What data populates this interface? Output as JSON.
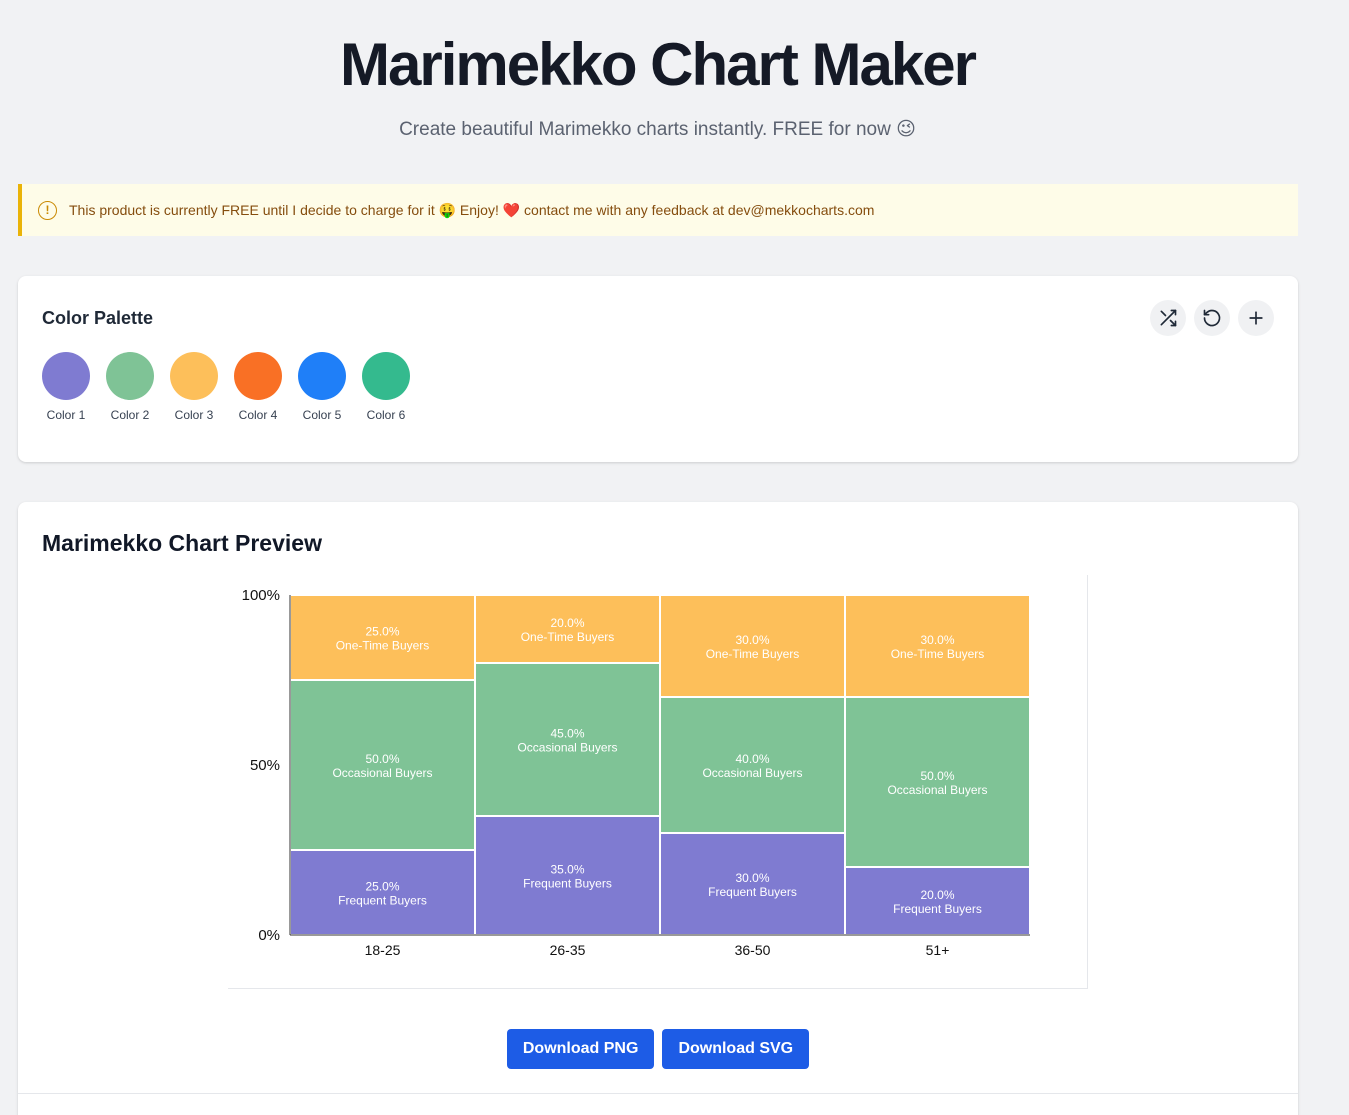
{
  "header": {
    "title": "Marimekko Chart Maker",
    "subtitle": "Create beautiful Marimekko charts instantly. FREE for now 😉"
  },
  "notice": {
    "icon": "exclamation-circle-icon",
    "text": "This product is currently FREE until I decide to charge for it 🤑 Enjoy! ❤️ contact me with any feedback at dev@mekkocharts.com"
  },
  "palette": {
    "title": "Color Palette",
    "actions": [
      "shuffle-icon",
      "reset-icon",
      "plus-icon"
    ],
    "colors": [
      {
        "label": "Color 1",
        "hex": "#7f7bd1"
      },
      {
        "label": "Color 2",
        "hex": "#7fc396"
      },
      {
        "label": "Color 3",
        "hex": "#fdbf5a"
      },
      {
        "label": "Color 4",
        "hex": "#f97025"
      },
      {
        "label": "Color 5",
        "hex": "#1f7ff8"
      },
      {
        "label": "Color 6",
        "hex": "#34ba8e"
      }
    ]
  },
  "preview": {
    "title": "Marimekko Chart Preview"
  },
  "chart_data": {
    "type": "bar",
    "subtype": "marimekko",
    "categories": [
      "18-25",
      "26-35",
      "36-50",
      "51+"
    ],
    "column_widths": [
      25,
      25,
      25,
      25
    ],
    "series": [
      {
        "name": "Frequent Buyers",
        "values": [
          25,
          35,
          30,
          20
        ],
        "color": "#7f7bd1"
      },
      {
        "name": "Occasional Buyers",
        "values": [
          50,
          45,
          40,
          50
        ],
        "color": "#7fc396"
      },
      {
        "name": "One-Time Buyers",
        "values": [
          25,
          20,
          30,
          30
        ],
        "color": "#fdbf5a"
      }
    ],
    "y_ticks": [
      "0%",
      "50%",
      "100%"
    ],
    "ylim": [
      0,
      100
    ],
    "title": "",
    "xlabel": "",
    "ylabel": "",
    "grid": false,
    "legend": "none"
  },
  "downloads": {
    "png_label": "Download PNG",
    "svg_label": "Download SVG"
  }
}
